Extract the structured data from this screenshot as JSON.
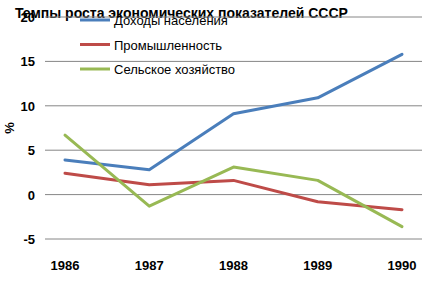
{
  "chart_data": {
    "type": "line",
    "title": "Темпы роста экономических показателей СССР",
    "y_label": "%",
    "categories": [
      "1986",
      "1987",
      "1988",
      "1989",
      "1990"
    ],
    "series": [
      {
        "name": "Доходы населения",
        "color": "#4a7ebb",
        "values": [
          3.9,
          2.8,
          9.1,
          10.9,
          15.8
        ]
      },
      {
        "name": "Промышленность",
        "color": "#be4b48",
        "values": [
          2.4,
          1.1,
          1.6,
          -0.8,
          -1.7
        ]
      },
      {
        "name": "Сельское хозяйство",
        "color": "#98b954",
        "values": [
          6.7,
          -1.3,
          3.1,
          1.6,
          -3.6
        ]
      }
    ],
    "ylim": [
      -5,
      20
    ],
    "yticks": [
      -5,
      0,
      5,
      10,
      15,
      20
    ],
    "grid": true,
    "legend": "top-left"
  }
}
